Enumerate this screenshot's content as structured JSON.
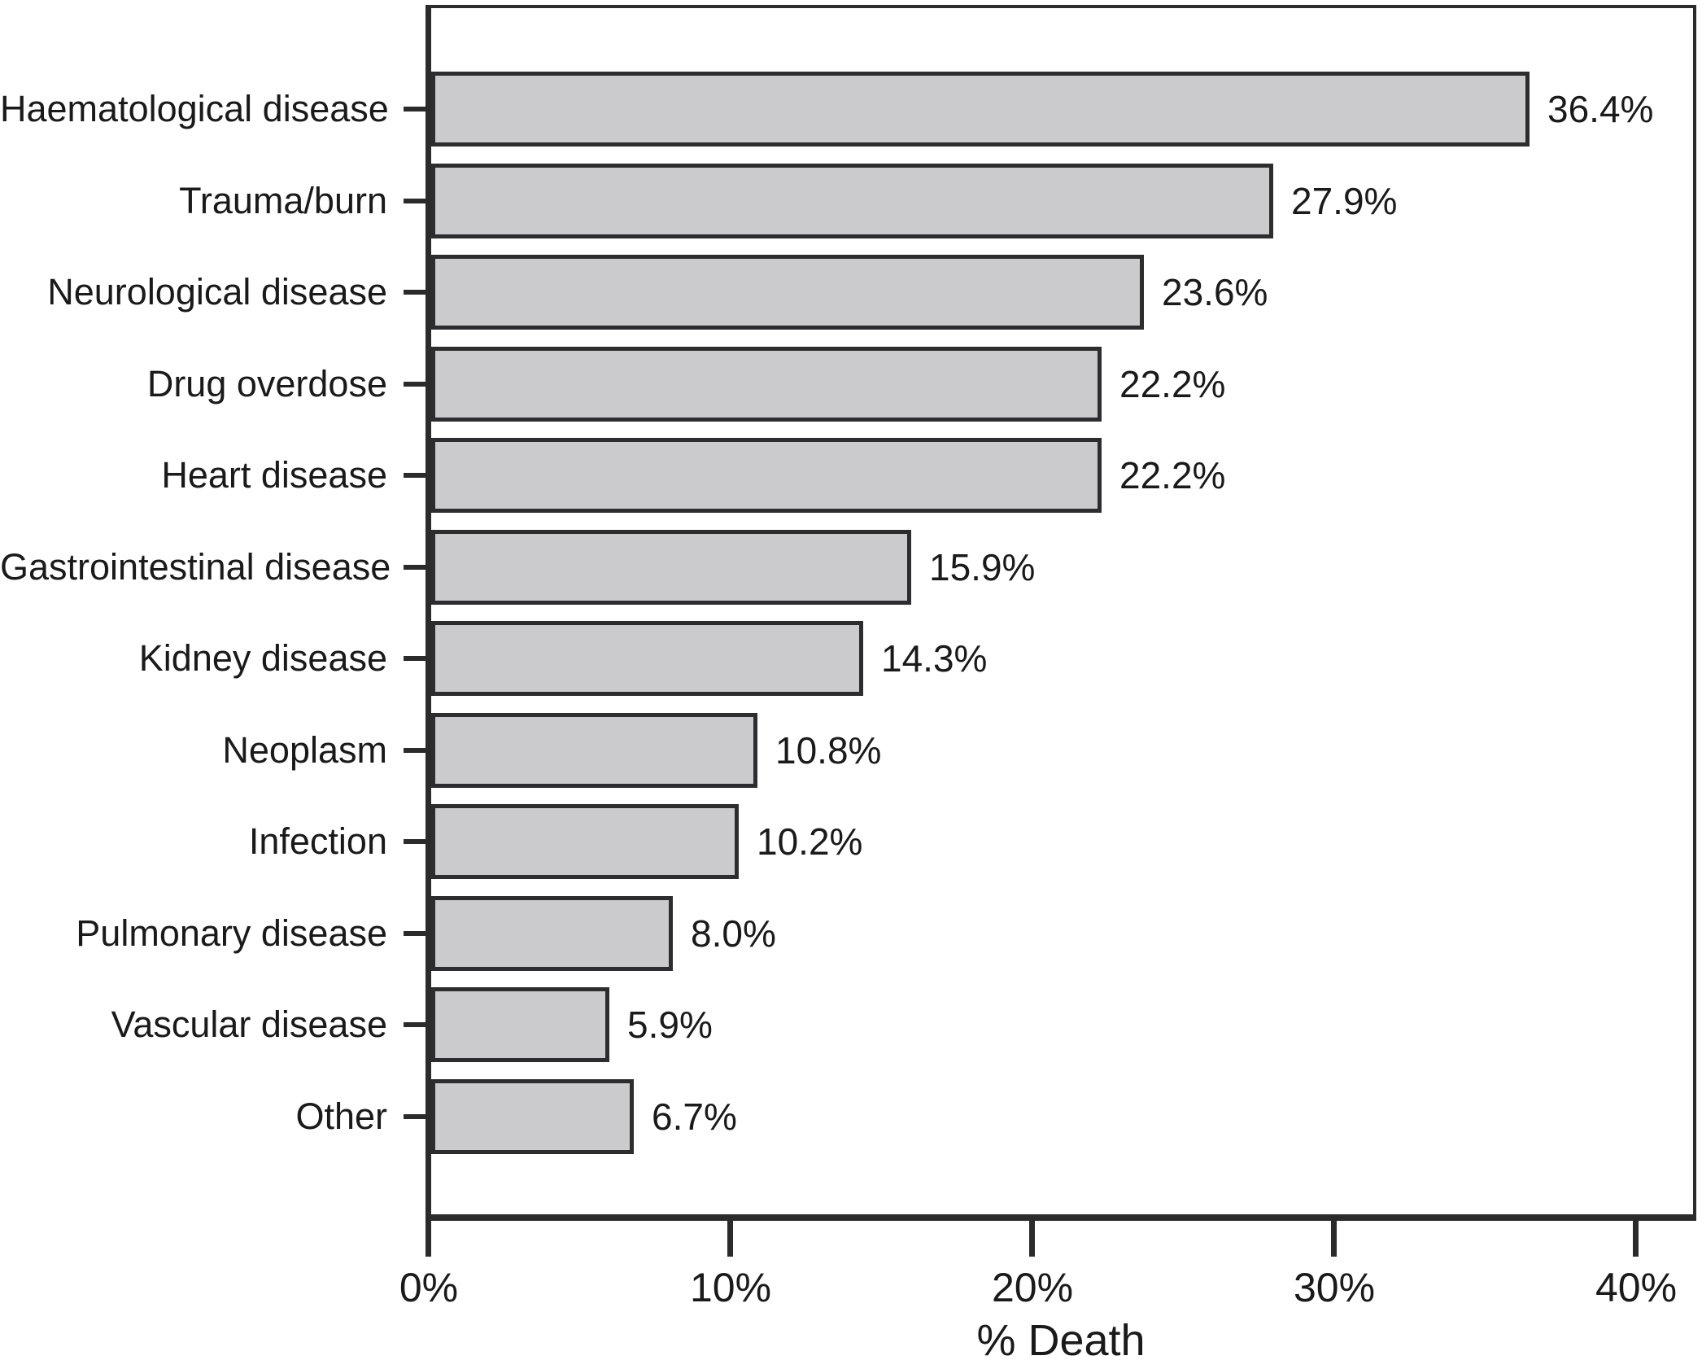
{
  "chart_data": {
    "type": "bar",
    "orientation": "horizontal",
    "title": "",
    "xlabel": "% Death",
    "ylabel": "",
    "categories": [
      "Haematological disease",
      "Trauma/burn",
      "Neurological disease",
      "Drug overdose",
      "Heart disease",
      "Gastrointestinal disease",
      "Kidney disease",
      "Neoplasm",
      "Infection",
      "Pulmonary disease",
      "Vascular disease",
      "Other"
    ],
    "values": [
      36.4,
      27.9,
      23.6,
      22.2,
      22.2,
      15.9,
      14.3,
      10.8,
      10.2,
      8.0,
      5.9,
      6.7
    ],
    "value_labels": [
      "36.4%",
      "27.9%",
      "23.6%",
      "22.2%",
      "22.2%",
      "15.9%",
      "14.3%",
      "10.8%",
      "10.2%",
      "8.0%",
      "5.9%",
      "6.7%"
    ],
    "x_ticks": [
      "0%",
      "10%",
      "20%",
      "30%",
      "40%"
    ],
    "x_tick_values": [
      0,
      10,
      20,
      30,
      40
    ],
    "xlim": [
      0,
      41.5
    ],
    "grid": false,
    "legend": null,
    "bar_fill_color": "#cbcbcd",
    "bar_border_color": "#2d2d2f",
    "axis_color": "#2b2b2b",
    "text_color": "#1a1a1a",
    "background_color": "#ffffff"
  }
}
